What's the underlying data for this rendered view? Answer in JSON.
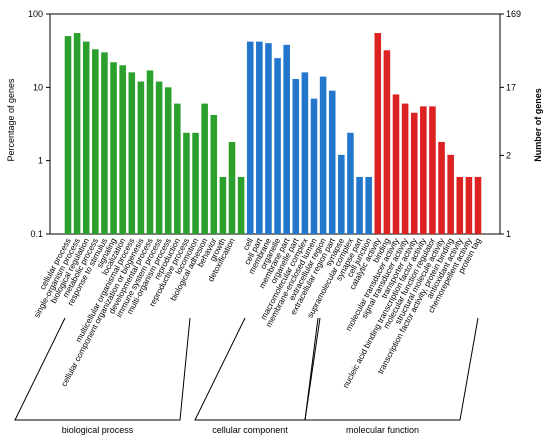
{
  "chart_data": {
    "type": "bar",
    "ylabel_left": "Percentage of genes",
    "ylabel_right": "Number of genes",
    "yscale": "log",
    "ylim": [
      0.1,
      100
    ],
    "left_ticks": [
      "100",
      "10",
      "1",
      "0.1"
    ],
    "right_ticks": [
      "169",
      "17",
      "2",
      "1"
    ],
    "groups": [
      {
        "name": "biological process",
        "color": "#2ca02c"
      },
      {
        "name": "cellular component",
        "color": "#2277cc"
      },
      {
        "name": "molecular function",
        "color": "#dd2222"
      }
    ],
    "bars": [
      {
        "label": "cellular process",
        "group": 0,
        "value": 50
      },
      {
        "label": "single-organism process",
        "group": 0,
        "value": 55
      },
      {
        "label": "biological regulation",
        "group": 0,
        "value": 42
      },
      {
        "label": "metabolic process",
        "group": 0,
        "value": 33
      },
      {
        "label": "response to stimulus",
        "group": 0,
        "value": 30
      },
      {
        "label": "signaling",
        "group": 0,
        "value": 22
      },
      {
        "label": "localization",
        "group": 0,
        "value": 20
      },
      {
        "label": "multicellular organismal process",
        "group": 0,
        "value": 16
      },
      {
        "label": "cellular component organization or biogenesis",
        "group": 0,
        "value": 12
      },
      {
        "label": "developmental process",
        "group": 0,
        "value": 17
      },
      {
        "label": "immune system process",
        "group": 0,
        "value": 12
      },
      {
        "label": "multi-organism process",
        "group": 0,
        "value": 10
      },
      {
        "label": "reproduction",
        "group": 0,
        "value": 6
      },
      {
        "label": "reproductive process",
        "group": 0,
        "value": 2.4
      },
      {
        "label": "locomotion",
        "group": 0,
        "value": 2.4
      },
      {
        "label": "biological adhesion",
        "group": 0,
        "value": 6
      },
      {
        "label": "behavior",
        "group": 0,
        "value": 4.2
      },
      {
        "label": "growth",
        "group": 0,
        "value": 0.6
      },
      {
        "label": "detoxification",
        "group": 0,
        "value": 1.8
      },
      {
        "label": "",
        "group": 0,
        "value": 0.6
      },
      {
        "label": "cell",
        "group": 1,
        "value": 42
      },
      {
        "label": "cell part",
        "group": 1,
        "value": 42
      },
      {
        "label": "membrane",
        "group": 1,
        "value": 40
      },
      {
        "label": "organelle",
        "group": 1,
        "value": 25
      },
      {
        "label": "membrane part",
        "group": 1,
        "value": 38
      },
      {
        "label": "organelle part",
        "group": 1,
        "value": 13
      },
      {
        "label": "macromolecular complex",
        "group": 1,
        "value": 16
      },
      {
        "label": "membrane-enclosed lumen",
        "group": 1,
        "value": 7
      },
      {
        "label": "extracellular region",
        "group": 1,
        "value": 14
      },
      {
        "label": "extracellular region part",
        "group": 1,
        "value": 9
      },
      {
        "label": "synapse",
        "group": 1,
        "value": 1.2
      },
      {
        "label": "supramolecular complex",
        "group": 1,
        "value": 2.4
      },
      {
        "label": "synapse part",
        "group": 1,
        "value": 0.6
      },
      {
        "label": "cell junction",
        "group": 1,
        "value": 0.6
      },
      {
        "label": "catalytic activity",
        "group": 2,
        "value": 55
      },
      {
        "label": "binding",
        "group": 2,
        "value": 32
      },
      {
        "label": "molecular transducer activity",
        "group": 2,
        "value": 8
      },
      {
        "label": "signal transducer activity",
        "group": 2,
        "value": 6
      },
      {
        "label": "transporter activity",
        "group": 2,
        "value": 4.5
      },
      {
        "label": "nucleic acid binding transcription factor activity",
        "group": 2,
        "value": 5.5
      },
      {
        "label": "molecular function regulator",
        "group": 2,
        "value": 5.5
      },
      {
        "label": "structural molecule activity",
        "group": 2,
        "value": 1.8
      },
      {
        "label": "transcription factor activity, protein binding",
        "group": 2,
        "value": 1.2
      },
      {
        "label": "antioxidant activity",
        "group": 2,
        "value": 0.6
      },
      {
        "label": "chemorepellent activity",
        "group": 2,
        "value": 0.6
      },
      {
        "label": "protein tag",
        "group": 2,
        "value": 0.6
      }
    ]
  }
}
